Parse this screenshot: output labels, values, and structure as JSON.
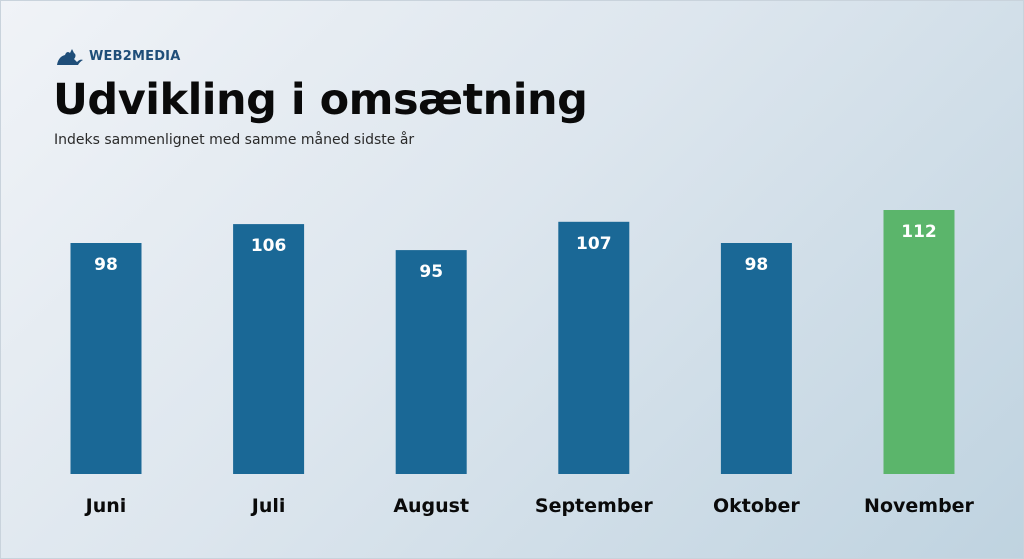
{
  "brand": {
    "name": "WEB2MEDIA",
    "logo_icon": "cat-logo-icon",
    "logo_color": "#1f4e79"
  },
  "header": {
    "title": "Udvikling i omsætning",
    "subtitle": "Indeks sammenlignet med samme måned sidste år"
  },
  "chart_data": {
    "type": "bar",
    "title": "Udvikling i omsætning",
    "subtitle": "Indeks sammenlignet med samme måned sidste år",
    "categories": [
      "Juni",
      "Juli",
      "August",
      "September",
      "Oktober",
      "November"
    ],
    "values": [
      98,
      106,
      95,
      107,
      98,
      112
    ],
    "value_labels": [
      "98",
      "106",
      "95",
      "107",
      "98",
      "112"
    ],
    "xlabel": "",
    "ylabel": "",
    "ylim": [
      0,
      112
    ],
    "grid": false,
    "legend": "none",
    "colors": {
      "default_bar": "#1a6896",
      "highlight_bar": "#5bb56b",
      "highlight_category": "November"
    }
  }
}
